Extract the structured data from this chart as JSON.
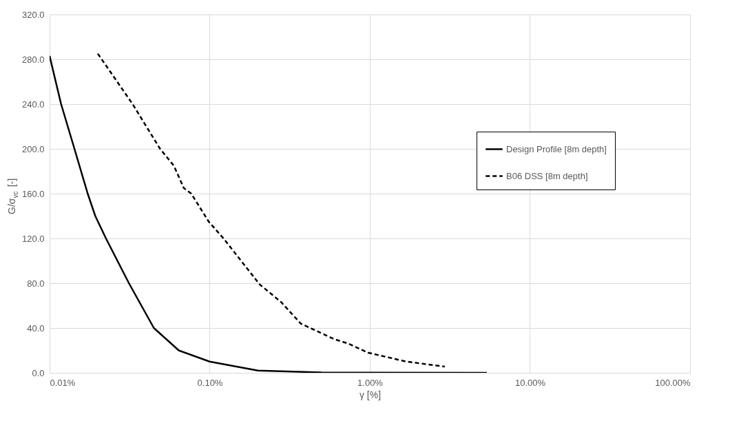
{
  "chart_data": {
    "type": "line",
    "xlabel": "γ [%]",
    "ylabel": "G/σ$_{vc}$ [-]",
    "log": "x",
    "xlim": [
      0.01,
      100
    ],
    "xticks": [
      {
        "value": 0.01,
        "label": "0.01%"
      },
      {
        "value": 0.1,
        "label": "0.10%"
      },
      {
        "value": 1,
        "label": "1.00%"
      },
      {
        "value": 10,
        "label": "10.00%"
      },
      {
        "value": 100,
        "label": "100.00%"
      }
    ],
    "ylim": [
      0,
      320
    ],
    "yticks": [
      {
        "value": 0,
        "label": "0.0"
      },
      {
        "value": 40,
        "label": "40.0"
      },
      {
        "value": 80,
        "label": "80.0"
      },
      {
        "value": 120,
        "label": "120.0"
      },
      {
        "value": 160,
        "label": "160.0"
      },
      {
        "value": 200,
        "label": "200.0"
      },
      {
        "value": 240,
        "label": "240.0"
      },
      {
        "value": 280,
        "label": "280.0"
      },
      {
        "value": 320,
        "label": "320.0"
      }
    ],
    "grid": true,
    "legend": "right",
    "marker": "none",
    "series": [
      {
        "name": "Design Profile [8m depth]",
        "color": "#000000",
        "line_style": "solid",
        "x": [
          0.01,
          0.0118,
          0.0143,
          0.0173,
          0.0193,
          0.0225,
          0.0313,
          0.0448,
          0.0641,
          0.1,
          0.2,
          0.5,
          1,
          5.38
        ],
        "values": [
          283,
          240,
          200,
          160,
          140,
          120,
          80,
          40,
          20,
          10,
          2,
          0.3,
          0.1,
          0
        ]
      },
      {
        "name": "B06 DSS [8m depth]",
        "color": "#000000",
        "line_style": "dashed",
        "x": [
          0.02,
          0.033,
          0.0402,
          0.049,
          0.0597,
          0.0689,
          0.0767,
          0.0986,
          0.122,
          0.205,
          0.28,
          0.37,
          0.455,
          0.6,
          0.738,
          0.973,
          1.69,
          2.94
        ],
        "values": [
          285,
          240,
          220,
          200,
          185,
          165,
          160,
          135,
          120,
          79,
          63,
          44,
          38,
          30,
          26,
          18,
          10,
          5.6
        ]
      }
    ]
  }
}
